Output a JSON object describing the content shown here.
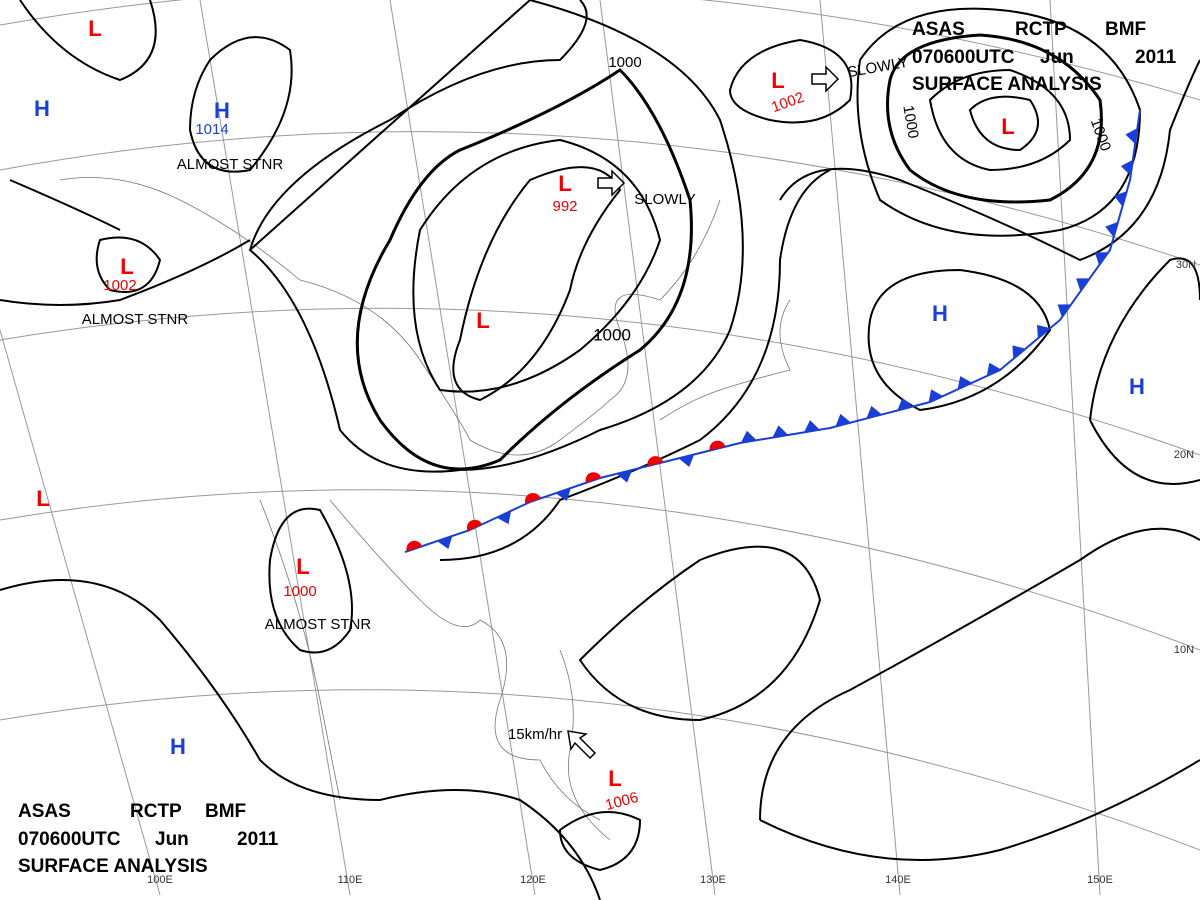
{
  "header": {
    "agency": "ASAS",
    "center": "RCTP",
    "code": "BMF",
    "time": "070600UTC",
    "month": "Jun",
    "year": "2011",
    "product": "SURFACE ANALYSIS"
  },
  "systems": [
    {
      "type": "L"
    },
    {
      "type": "H"
    },
    {
      "type": "H",
      "pressure": 1014,
      "motion": "ALMOST STNR"
    },
    {
      "type": "L",
      "pressure": 1002,
      "motion": "ALMOST STNR"
    },
    {
      "type": "L",
      "pressure": 992,
      "motion": "SLOWLY"
    },
    {
      "type": "L"
    },
    {
      "type": "L",
      "pressure": 1002,
      "motion": "SLOWLY"
    },
    {
      "type": "L"
    },
    {
      "type": "H"
    },
    {
      "type": "H"
    },
    {
      "type": "L"
    },
    {
      "type": "L",
      "pressure": 1000,
      "motion": "ALMOST STNR"
    },
    {
      "type": "H"
    },
    {
      "type": "L",
      "pressure": 1006,
      "motion": "15km/hr"
    }
  ],
  "isobar_labels": [
    1000,
    1000,
    1000,
    1000
  ],
  "longitudes": [
    "100E",
    "110E",
    "120E",
    "130E",
    "140E",
    "150E"
  ],
  "latitudes": [
    "30N",
    "20N",
    "10N"
  ]
}
